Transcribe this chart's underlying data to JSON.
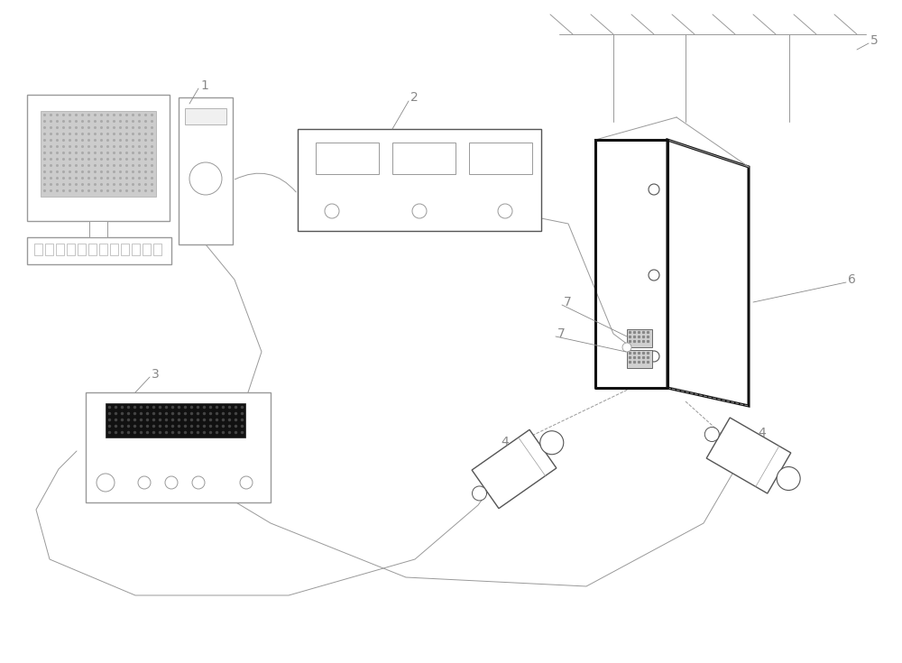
{
  "bg_color": "#ffffff",
  "line_color": "#999999",
  "dark_color": "#555555",
  "black_color": "#111111",
  "label_color": "#888888",
  "fig_width": 10.0,
  "fig_height": 7.35
}
